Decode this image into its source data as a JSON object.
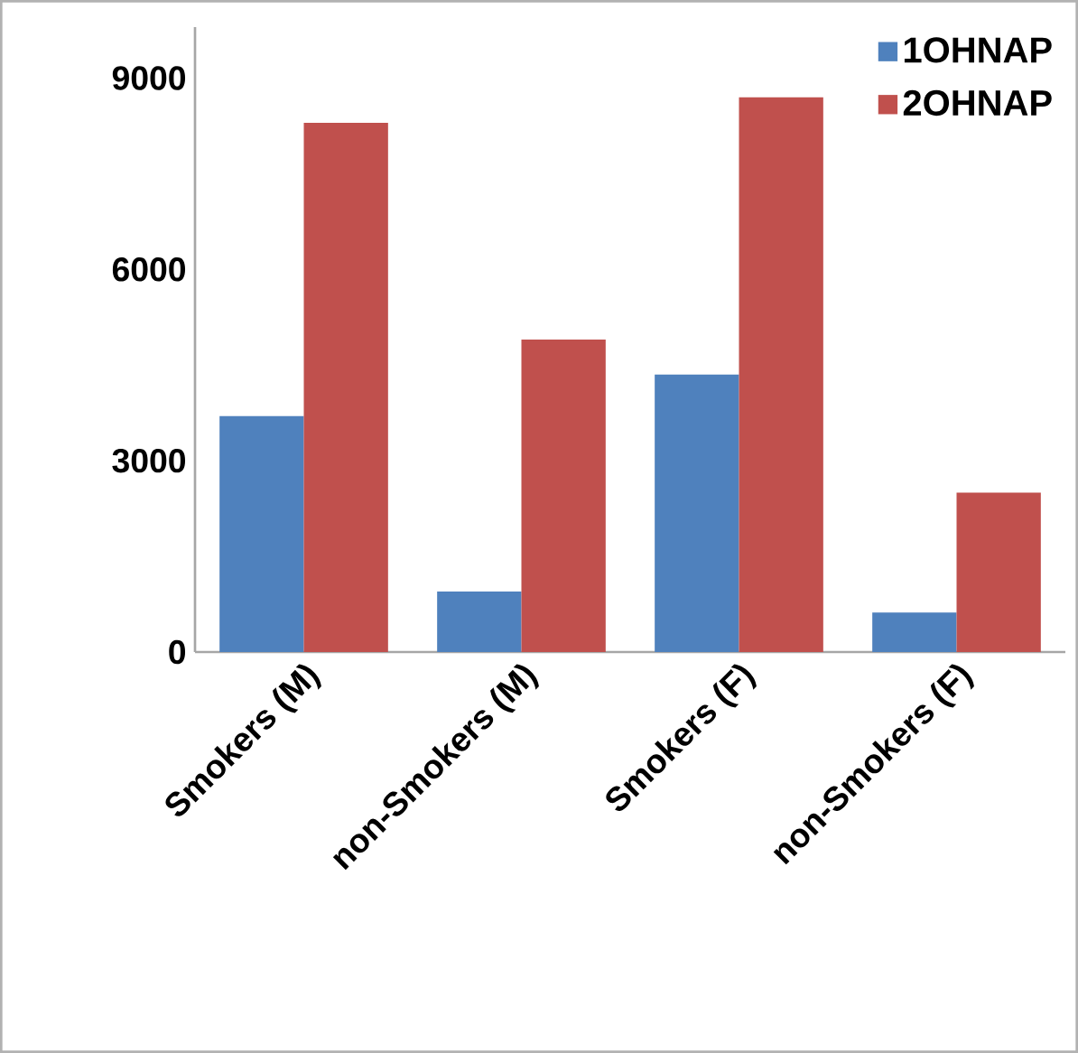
{
  "chart_data": {
    "type": "bar",
    "categories": [
      "Smokers (M)",
      "non-Smokers (M)",
      "Smokers  (F)",
      "non-Smokers  (F)"
    ],
    "series": [
      {
        "name": "1OHNAP",
        "color": "#4f81bd",
        "values": [
          3700,
          950,
          4350,
          620
        ]
      },
      {
        "name": "2OHNAP",
        "color": "#c0504d",
        "values": [
          8300,
          4900,
          8700,
          2500
        ]
      }
    ],
    "ylim": [
      0,
      9800
    ],
    "yticks": [
      0,
      3000,
      6000,
      9000
    ],
    "grid": false,
    "legend": "top right"
  }
}
